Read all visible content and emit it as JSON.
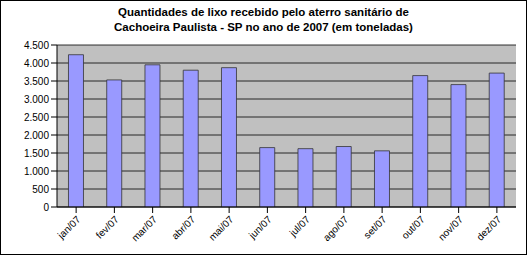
{
  "chart_data": {
    "type": "bar",
    "title": "Quantidades de lixo recebido pelo aterro sanitário de\nCachoeira Paulista - SP no ano de 2007 (em toneladas)",
    "categories": [
      "jan/07",
      "fev/07",
      "mar/07",
      "abr/07",
      "mai/07",
      "jun/07",
      "jul/07",
      "ago/07",
      "set/07",
      "out/07",
      "nov/07",
      "dez/07"
    ],
    "values": [
      4230,
      3530,
      3950,
      3800,
      3870,
      1650,
      1620,
      1680,
      1560,
      3650,
      3400,
      3720
    ],
    "color": "#9999ff",
    "ylim": [
      0,
      4500
    ],
    "yticks": [
      0,
      500,
      {
        "value": 1000,
        "label": "1.000"
      },
      {
        "value": 1500,
        "label": "1.500"
      },
      {
        "value": 2000,
        "label": "2.000"
      },
      {
        "value": 2500,
        "label": "2.500"
      },
      {
        "value": 3000,
        "label": "3.000"
      },
      {
        "value": 3500,
        "label": "3.500"
      },
      {
        "value": 4000,
        "label": "4.000"
      },
      {
        "value": 4500,
        "label": "4.500"
      }
    ],
    "grid": true
  }
}
